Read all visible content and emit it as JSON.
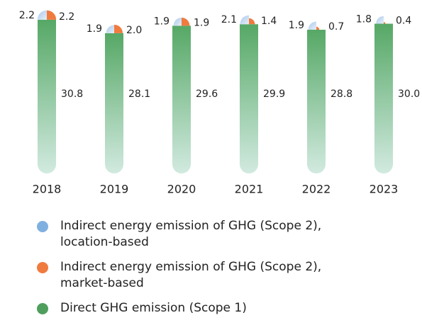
{
  "chart_data": {
    "type": "bar",
    "categories": [
      "2018",
      "2019",
      "2020",
      "2021",
      "2022",
      "2023"
    ],
    "series": [
      {
        "name": "Direct GHG emission (Scope 1)",
        "color": "#4f9e5e",
        "values": [
          30.8,
          28.1,
          29.6,
          29.9,
          28.8,
          30.0
        ],
        "value_labels": [
          "30.8",
          "28.1",
          "29.6",
          "29.9",
          "28.8",
          "30.0"
        ]
      },
      {
        "name": "Indirect energy emission of GHG (Scope 2), location-based",
        "color": "#7fb0e0",
        "values": [
          2.2,
          1.9,
          1.9,
          2.1,
          1.9,
          1.8
        ],
        "value_labels": [
          "2.2",
          "1.9",
          "1.9",
          "2.1",
          "1.9",
          "1.8"
        ]
      },
      {
        "name": "Indirect energy emission of GHG (Scope 2), market-based",
        "color": "#f07b3f",
        "values": [
          2.2,
          2.0,
          1.9,
          1.4,
          0.7,
          0.4
        ],
        "value_labels": [
          "2.2",
          "2.0",
          "1.9",
          "1.4",
          "0.7",
          "0.4"
        ]
      }
    ],
    "legend_order": [
      1,
      2,
      0
    ]
  }
}
